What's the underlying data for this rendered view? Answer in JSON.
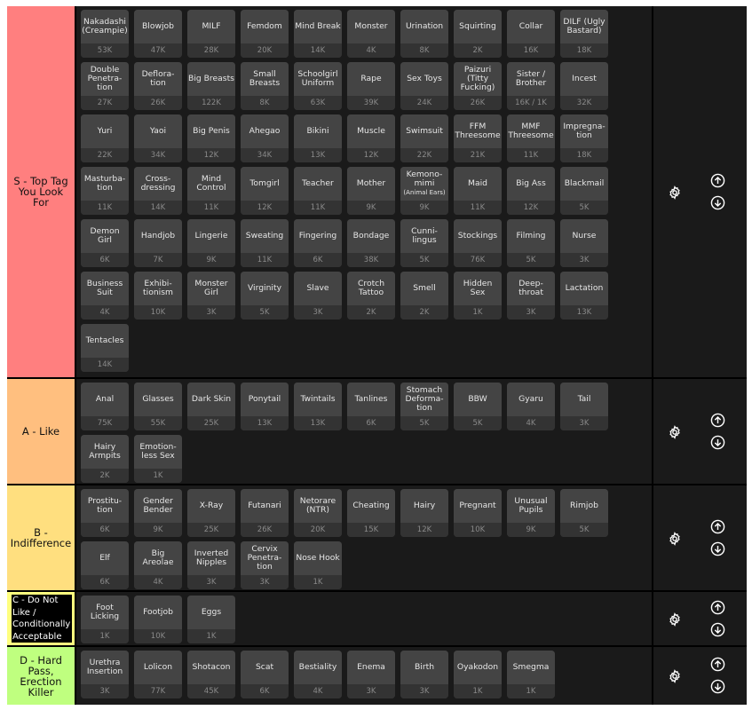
{
  "tiers": [
    {
      "label": "S - Top Tag You Look For",
      "color": "#ff7f7f",
      "items": [
        {
          "name": "Nakadashi (Creampie)",
          "count": "53K"
        },
        {
          "name": "Blowjob",
          "count": "47K"
        },
        {
          "name": "MILF",
          "count": "28K"
        },
        {
          "name": "Femdom",
          "count": "20K"
        },
        {
          "name": "Mind Break",
          "count": "14K"
        },
        {
          "name": "Monster",
          "count": "4K"
        },
        {
          "name": "Urination",
          "count": "8K"
        },
        {
          "name": "Squirting",
          "count": "2K"
        },
        {
          "name": "Collar",
          "count": "16K"
        },
        {
          "name": "DILF (Ugly Bastard)",
          "count": "18K"
        },
        {
          "name": "Double Penetra-tion",
          "count": "27K"
        },
        {
          "name": "Deflora-tion",
          "count": "26K"
        },
        {
          "name": "Big Breasts",
          "count": "122K"
        },
        {
          "name": "Small Breasts",
          "count": "8K"
        },
        {
          "name": "Schoolgirl Uniform",
          "count": "63K"
        },
        {
          "name": "Rape",
          "count": "39K"
        },
        {
          "name": "Sex Toys",
          "count": "24K"
        },
        {
          "name": "Paizuri (Titty Fucking)",
          "count": "26K"
        },
        {
          "name": "Sister / Brother",
          "count": "16K / 1K"
        },
        {
          "name": "Incest",
          "count": "32K"
        },
        {
          "name": "Yuri",
          "count": "22K"
        },
        {
          "name": "Yaoi",
          "count": "34K"
        },
        {
          "name": "Big Penis",
          "count": "12K"
        },
        {
          "name": "Ahegao",
          "count": "34K"
        },
        {
          "name": "Bikini",
          "count": "13K"
        },
        {
          "name": "Muscle",
          "count": "12K"
        },
        {
          "name": "Swimsuit",
          "count": "22K"
        },
        {
          "name": "FFM Threesome",
          "count": "21K"
        },
        {
          "name": "MMF Threesome",
          "count": "11K"
        },
        {
          "name": "Impregna-tion",
          "count": "18K"
        },
        {
          "name": "Masturba-tion",
          "count": "11K"
        },
        {
          "name": "Cross-dressing",
          "count": "14K"
        },
        {
          "name": "Mind Control",
          "count": "11K"
        },
        {
          "name": "Tomgirl",
          "count": "12K"
        },
        {
          "name": "Teacher",
          "count": "11K"
        },
        {
          "name": "Mother",
          "count": "9K"
        },
        {
          "name": "Kemono-mimi",
          "sub": "(Animal Ears)",
          "count": "9K"
        },
        {
          "name": "Maid",
          "count": "11K"
        },
        {
          "name": "Big Ass",
          "count": "12K"
        },
        {
          "name": "Blackmail",
          "count": "5K"
        },
        {
          "name": "Demon Girl",
          "count": "6K"
        },
        {
          "name": "Handjob",
          "count": "7K"
        },
        {
          "name": "Lingerie",
          "count": "9K"
        },
        {
          "name": "Sweating",
          "count": "11K"
        },
        {
          "name": "Fingering",
          "count": "6K"
        },
        {
          "name": "Bondage",
          "count": "38K"
        },
        {
          "name": "Cunni-lingus",
          "count": "5K"
        },
        {
          "name": "Stockings",
          "count": "76K"
        },
        {
          "name": "Filming",
          "count": "5K"
        },
        {
          "name": "Nurse",
          "count": "3K"
        },
        {
          "name": "Business Suit",
          "count": "4K"
        },
        {
          "name": "Exhibi-tionism",
          "count": "10K"
        },
        {
          "name": "Monster Girl",
          "count": "3K"
        },
        {
          "name": "Virginity",
          "count": "5K"
        },
        {
          "name": "Slave",
          "count": "3K"
        },
        {
          "name": "Crotch Tattoo",
          "count": "2K"
        },
        {
          "name": "Smell",
          "count": "2K"
        },
        {
          "name": "Hidden Sex",
          "count": "1K"
        },
        {
          "name": "Deep-throat",
          "count": "3K"
        },
        {
          "name": "Lactation",
          "count": "13K"
        },
        {
          "name": "Tentacles",
          "count": "14K"
        }
      ]
    },
    {
      "label": "A - Like",
      "color": "#ffbf7f",
      "items": [
        {
          "name": "Anal",
          "count": "75K"
        },
        {
          "name": "Glasses",
          "count": "55K"
        },
        {
          "name": "Dark Skin",
          "count": "25K"
        },
        {
          "name": "Ponytail",
          "count": "13K"
        },
        {
          "name": "Twintails",
          "count": "13K"
        },
        {
          "name": "Tanlines",
          "count": "6K"
        },
        {
          "name": "Stomach Deforma-tion",
          "count": "5K"
        },
        {
          "name": "BBW",
          "count": "5K"
        },
        {
          "name": "Gyaru",
          "count": "4K"
        },
        {
          "name": "Tail",
          "count": "3K"
        },
        {
          "name": "Hairy Armpits",
          "count": "2K"
        },
        {
          "name": "Emotion-less Sex",
          "count": "1K"
        }
      ]
    },
    {
      "label": "B - Indifference",
      "color": "#ffdf7f",
      "items": [
        {
          "name": "Prostitu-tion",
          "count": "6K"
        },
        {
          "name": "Gender Bender",
          "count": "9K"
        },
        {
          "name": "X-Ray",
          "count": "25K"
        },
        {
          "name": "Futanari",
          "count": "26K"
        },
        {
          "name": "Netorare (NTR)",
          "count": "20K"
        },
        {
          "name": "Cheating",
          "count": "15K"
        },
        {
          "name": "Hairy",
          "count": "12K"
        },
        {
          "name": "Pregnant",
          "count": "10K"
        },
        {
          "name": "Unusual Pupils",
          "count": "9K"
        },
        {
          "name": "Rimjob",
          "count": "5K"
        },
        {
          "name": "Elf",
          "count": "6K"
        },
        {
          "name": "Big Areolae",
          "count": "4K"
        },
        {
          "name": "Inverted Nipples",
          "count": "3K"
        },
        {
          "name": "Cervix Penetra-tion",
          "count": "3K"
        },
        {
          "name": "Nose Hook",
          "count": "1K"
        }
      ]
    },
    {
      "label": "C - Do Not Like / Conditionally Acceptable",
      "color": "#ffff7f",
      "items": [
        {
          "name": "Foot Licking",
          "count": "1K"
        },
        {
          "name": "Footjob",
          "count": "10K"
        },
        {
          "name": "Eggs",
          "count": "1K"
        }
      ]
    },
    {
      "label": "D - Hard Pass, Erection Killer",
      "color": "#bfff7f",
      "items": [
        {
          "name": "Urethra Insertion",
          "count": "3K"
        },
        {
          "name": "Lolicon",
          "count": "77K"
        },
        {
          "name": "Shotacon",
          "count": "45K"
        },
        {
          "name": "Scat",
          "count": "6K"
        },
        {
          "name": "Bestiality",
          "count": "4K"
        },
        {
          "name": "Enema",
          "count": "3K"
        },
        {
          "name": "Birth",
          "count": "3K"
        },
        {
          "name": "Oyakodon",
          "count": "1K"
        },
        {
          "name": "Smegma",
          "count": "1K"
        }
      ]
    }
  ]
}
